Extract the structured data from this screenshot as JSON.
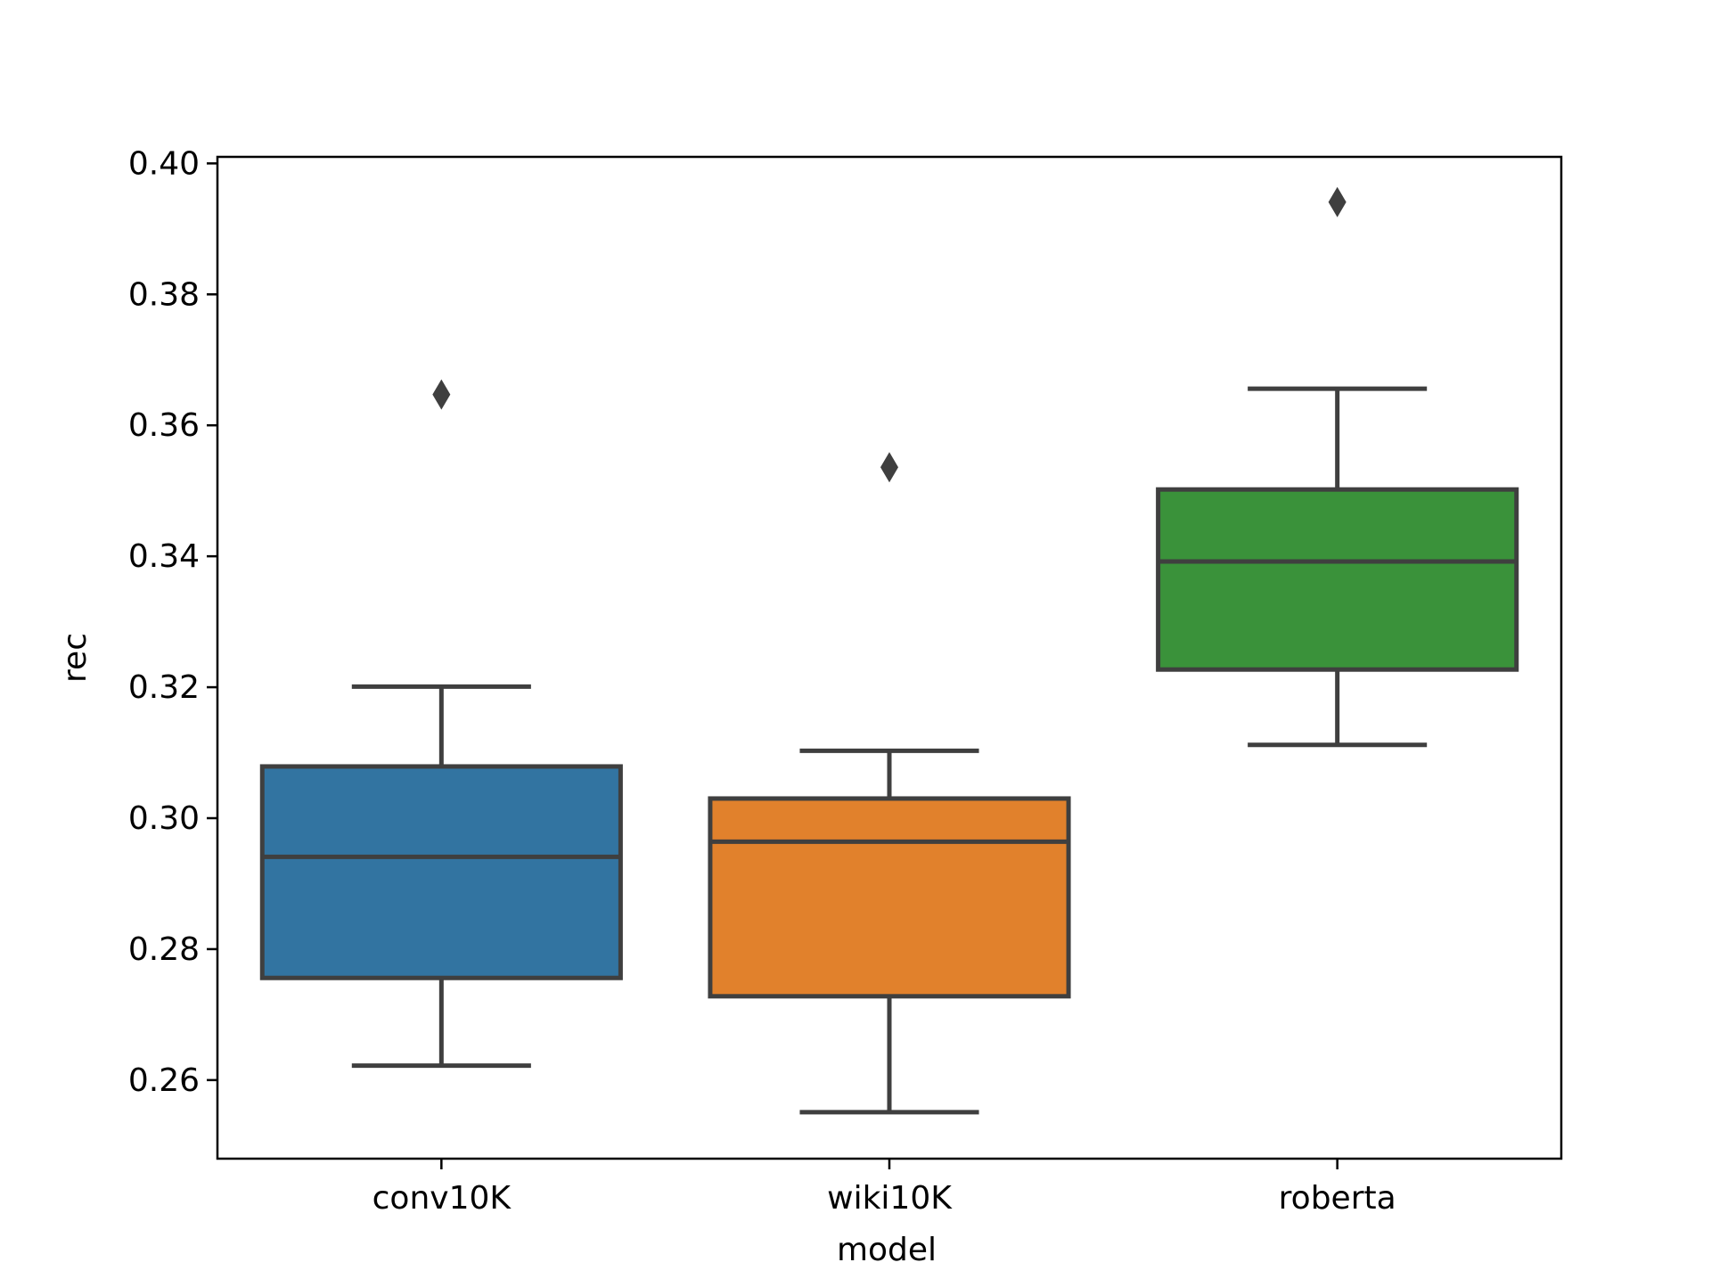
{
  "chart_data": {
    "type": "box",
    "title": "",
    "xlabel": "model",
    "ylabel": "rec",
    "ylim": [
      0.248,
      0.401
    ],
    "yticks": [
      0.26,
      0.28,
      0.3,
      0.32,
      0.34,
      0.36,
      0.38,
      0.4
    ],
    "ytick_labels": [
      "0.26",
      "0.28",
      "0.30",
      "0.32",
      "0.34",
      "0.36",
      "0.38",
      "0.40"
    ],
    "categories": [
      "conv10K",
      "wiki10K",
      "roberta"
    ],
    "grid": false,
    "legend": "none",
    "boxes": [
      {
        "category": "conv10K",
        "color": "#3274a1",
        "whisker_low": 0.2622,
        "q1": 0.2756,
        "median": 0.2941,
        "q3": 0.3079,
        "whisker_high": 0.3201,
        "outliers": [
          0.3647
        ]
      },
      {
        "category": "wiki10K",
        "color": "#e1812c",
        "whisker_low": 0.2551,
        "q1": 0.2728,
        "median": 0.2964,
        "q3": 0.303,
        "whisker_high": 0.3103,
        "outliers": [
          0.3536
        ]
      },
      {
        "category": "roberta",
        "color": "#3a923a",
        "whisker_low": 0.3112,
        "q1": 0.3227,
        "median": 0.3392,
        "q3": 0.3502,
        "whisker_high": 0.3656,
        "outliers": [
          0.3941
        ]
      }
    ]
  },
  "style": {
    "edge_color": "#3f3f3f",
    "axis_color": "#000000"
  }
}
